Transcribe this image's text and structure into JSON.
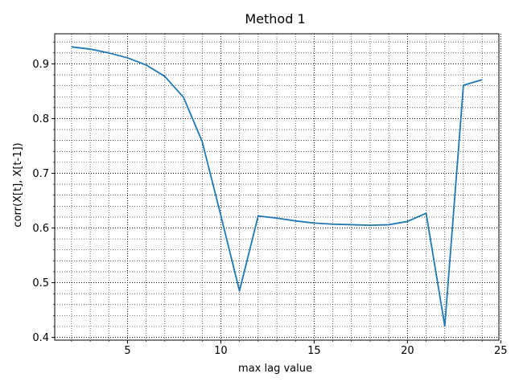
{
  "chart_data": {
    "type": "line",
    "title": "Method 1",
    "xlabel": "max lag value",
    "ylabel": "corr(X[t], X[t-1])",
    "xlim": [
      1.1,
      24.9
    ],
    "ylim": [
      0.395,
      0.955
    ],
    "x_major_ticks": [
      5,
      10,
      15,
      20,
      25
    ],
    "y_major_ticks": [
      0.4,
      0.5,
      0.6,
      0.7,
      0.8,
      0.9
    ],
    "x_minor_step": 1,
    "y_minor_step": 0.02,
    "grid": "major and minor, dotted",
    "series": [
      {
        "color": "#1f77b4",
        "x": [
          2,
          3,
          4,
          5,
          6,
          7,
          8,
          9,
          10,
          11,
          12,
          13,
          14,
          15,
          16,
          17,
          18,
          19,
          20,
          21,
          22,
          23,
          24
        ],
        "y": [
          0.931,
          0.927,
          0.92,
          0.911,
          0.898,
          0.877,
          0.839,
          0.758,
          0.623,
          0.485,
          0.622,
          0.618,
          0.613,
          0.609,
          0.607,
          0.606,
          0.605,
          0.606,
          0.612,
          0.627,
          0.421,
          0.861,
          0.871
        ]
      }
    ]
  }
}
